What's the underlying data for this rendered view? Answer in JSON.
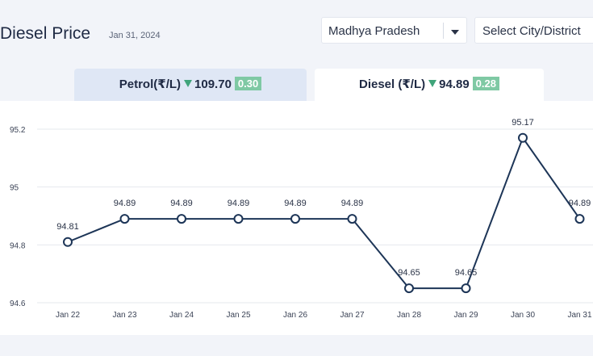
{
  "header": {
    "title": "Diesel Price",
    "date": "Jan 31, 2024",
    "state_select": "Madhya Pradesh",
    "city_select": "Select City/District"
  },
  "tabs": {
    "petrol": {
      "label": "Petrol(₹/L)",
      "price": "109.70",
      "change": "0.30"
    },
    "diesel": {
      "label": "Diesel (₹/L)",
      "price": "94.89",
      "change": "0.28"
    }
  },
  "colors": {
    "line": "#1d3557",
    "decrease": "#3fa47a",
    "badge": "#7fc9a4",
    "active_tab": "#ffffff",
    "inactive_tab": "#dfe7f5"
  },
  "chart_data": {
    "type": "line",
    "categories": [
      "Jan 22",
      "Jan 23",
      "Jan 24",
      "Jan 25",
      "Jan 26",
      "Jan 27",
      "Jan 28",
      "Jan 29",
      "Jan 30",
      "Jan 31"
    ],
    "values": [
      94.81,
      94.89,
      94.89,
      94.89,
      94.89,
      94.89,
      94.65,
      94.65,
      95.17,
      94.89
    ],
    "data_labels": [
      "94.81",
      "94.89",
      "94.89",
      "94.89",
      "94.89",
      "94.89",
      "94.65",
      "94.65",
      "95.17",
      "94.89"
    ],
    "y_ticks": [
      "94.6",
      "94.8",
      "95",
      "95.2"
    ],
    "ylim": [
      94.6,
      95.2
    ],
    "grid": true,
    "title": "",
    "xlabel": "",
    "ylabel": ""
  }
}
